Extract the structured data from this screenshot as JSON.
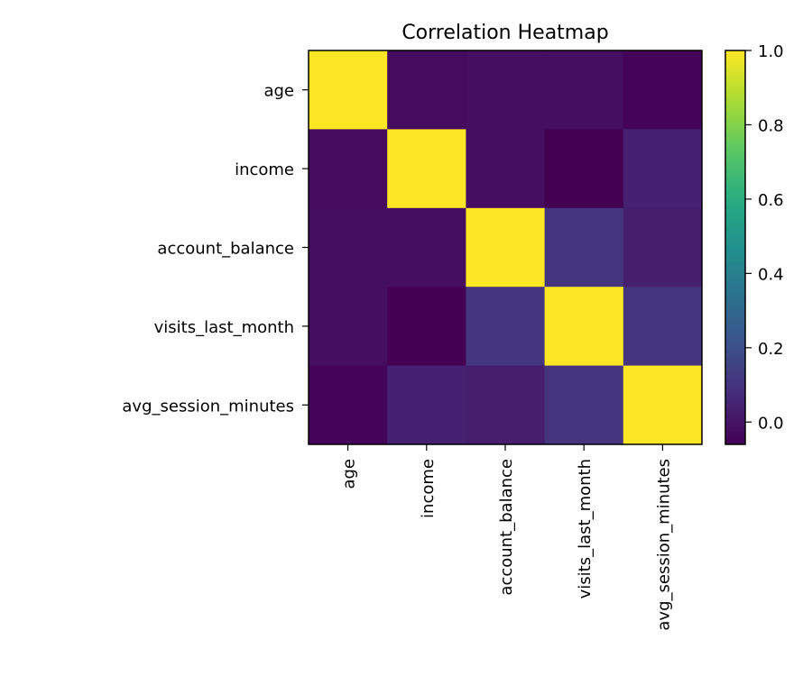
{
  "chart_data": {
    "type": "heatmap",
    "title": "Correlation Heatmap",
    "xlabel": "",
    "ylabel": "",
    "x_categories": [
      "age",
      "income",
      "account_balance",
      "visits_last_month",
      "avg_session_minutes"
    ],
    "y_categories": [
      "age",
      "income",
      "account_balance",
      "visits_last_month",
      "avg_session_minutes"
    ],
    "values": [
      [
        1.0,
        -0.03,
        -0.02,
        -0.02,
        -0.05
      ],
      [
        -0.03,
        1.0,
        -0.02,
        -0.06,
        0.04
      ],
      [
        -0.02,
        -0.02,
        1.0,
        0.1,
        0.03
      ],
      [
        -0.02,
        -0.06,
        0.1,
        1.0,
        0.1
      ],
      [
        -0.05,
        0.04,
        0.03,
        0.1,
        1.0
      ]
    ],
    "colormap": "viridis",
    "color_range": [
      -0.06,
      1.0
    ],
    "colorbar": {
      "ticks": [
        1.0,
        0.8,
        0.6,
        0.4,
        0.2,
        0.0
      ],
      "tick_labels": [
        "1.0",
        "0.8",
        "0.6",
        "0.4",
        "0.2",
        "0.0"
      ],
      "placement": "right"
    },
    "grid": false
  }
}
